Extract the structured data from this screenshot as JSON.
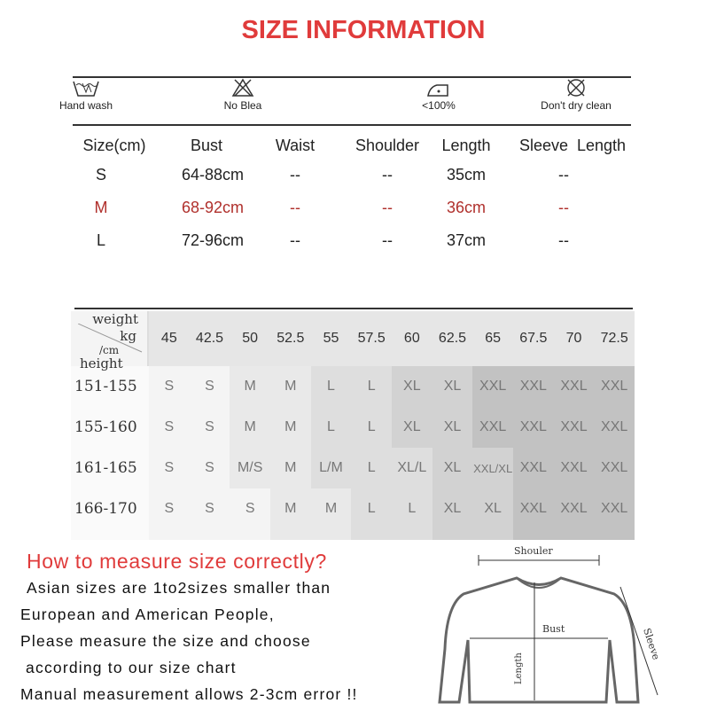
{
  "title": "SIZE INFORMATION",
  "care": [
    {
      "icon": "hand-wash-icon",
      "label": "Hand wash"
    },
    {
      "icon": "no-bleach-icon",
      "label": "No Blea"
    },
    {
      "icon": "iron-icon",
      "label": "<100%"
    },
    {
      "icon": "no-dry-clean-icon",
      "label": "Don't dry clean"
    }
  ],
  "size_table": {
    "headers": [
      "Size(cm)",
      "Bust",
      "Waist",
      "Shoulder",
      "Length",
      "Sleeve  Length"
    ],
    "rows": [
      [
        "S",
        "64-88cm",
        "--",
        "--",
        "35cm",
        "--"
      ],
      [
        "M",
        "68-92cm",
        "--",
        "--",
        "36cm",
        "--"
      ],
      [
        "L",
        "72-96cm",
        "--",
        "--",
        "37cm",
        "--"
      ]
    ],
    "highlight_row": 1,
    "highlight_color": "#b0302c"
  },
  "weight_chart": {
    "corner": {
      "weight": "weight",
      "kg": "kg",
      "cm": "/cm",
      "height": "height"
    },
    "weights": [
      "45",
      "42.5",
      "50",
      "52.5",
      "55",
      "57.5",
      "60",
      "62.5",
      "65",
      "67.5",
      "70",
      "72.5"
    ],
    "rows": [
      {
        "height": "151-155",
        "sizes": [
          "S",
          "S",
          "M",
          "M",
          "L",
          "L",
          "XL",
          "XL",
          "XXL",
          "XXL",
          "XXL",
          "XXL"
        ],
        "shade": [
          0,
          0,
          1,
          1,
          2,
          2,
          3,
          3,
          4,
          4,
          4,
          4
        ]
      },
      {
        "height": "155-160",
        "sizes": [
          "S",
          "S",
          "M",
          "M",
          "L",
          "L",
          "XL",
          "XL",
          "XXL",
          "XXL",
          "XXL",
          "XXL"
        ],
        "shade": [
          0,
          0,
          1,
          1,
          2,
          2,
          3,
          3,
          4,
          4,
          4,
          4
        ]
      },
      {
        "height": "161-165",
        "sizes": [
          "S",
          "S",
          "M/S",
          "M",
          "L/M",
          "L",
          "XL/L",
          "XL",
          "XXL/XL",
          "XXL",
          "XXL",
          "XXL"
        ],
        "shade": [
          0,
          0,
          1,
          1,
          2,
          2,
          2,
          3,
          3,
          4,
          4,
          4
        ]
      },
      {
        "height": "166-170",
        "sizes": [
          "S",
          "S",
          "S",
          "M",
          "M",
          "L",
          "L",
          "XL",
          "XL",
          "XXL",
          "XXL",
          "XXL"
        ],
        "shade": [
          0,
          0,
          0,
          1,
          1,
          2,
          2,
          3,
          3,
          4,
          4,
          4
        ]
      }
    ]
  },
  "measure": {
    "heading": "How to measure size correctly?",
    "heading_color": "#e03b3b",
    "lines": [
      "Asian sizes are 1to2sizes smaller than",
      "European and American People,",
      "Please measure the size and choose",
      " according to our size chart",
      "Manual measurement allows 2-3cm error !!"
    ]
  },
  "diagram": {
    "shoulder": "Shouler",
    "bust": "Bust",
    "length": "Length",
    "sleeve": "Sleeve"
  }
}
